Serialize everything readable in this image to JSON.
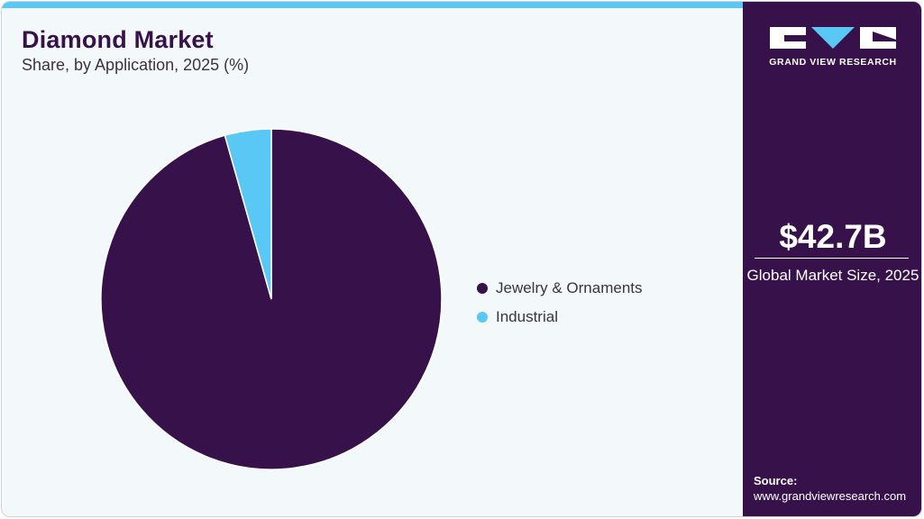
{
  "header": {
    "title": "Diamond Market",
    "subtitle": "Share, by Application, 2025 (%)"
  },
  "legend": {
    "items": [
      {
        "label": "Jewelry & Ornaments",
        "color": "#37114a"
      },
      {
        "label": "Industrial",
        "color": "#5ac8f5"
      }
    ]
  },
  "sidebar": {
    "brand": "GRAND VIEW RESEARCH",
    "market_size": "$42.7B",
    "market_size_label": "Global Market Size, 2025",
    "source_label": "Source:",
    "source_url": "www.grandviewresearch.com"
  },
  "colors": {
    "accent": "#5ac8f5",
    "brand": "#37114a",
    "background": "#f3f8fb"
  },
  "chart_data": {
    "type": "pie",
    "title": "Diamond Market",
    "subtitle": "Share, by Application, 2025 (%)",
    "categories": [
      "Jewelry & Ornaments",
      "Industrial"
    ],
    "values": [
      95.6,
      4.4
    ],
    "colors": [
      "#37114a",
      "#5ac8f5"
    ],
    "start_angle": "12 o'clock, counter-clockwise ordering of small slice",
    "legend_position": "right",
    "data_labels": false
  }
}
